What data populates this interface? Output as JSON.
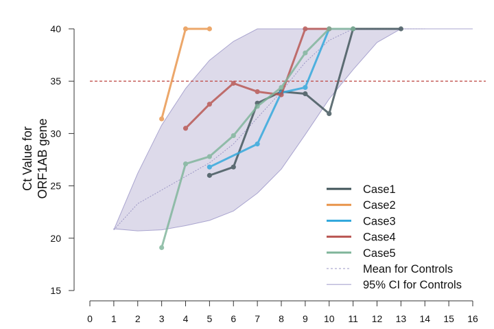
{
  "chart_data": {
    "type": "line",
    "title": "",
    "xlabel": "",
    "ylabel_lines": [
      "Ct Value for",
      "ORF1AB gene"
    ],
    "xlim": [
      0,
      16
    ],
    "ylim": [
      15,
      40
    ],
    "x_ticks": [
      "0",
      "1",
      "2",
      "3",
      "4",
      "5",
      "6",
      "7",
      "8",
      "9",
      "10",
      "11",
      "12",
      "13",
      "14",
      "15",
      "16"
    ],
    "y_ticks": [
      "15",
      "20",
      "25",
      "30",
      "35",
      "40"
    ],
    "grid": false,
    "threshold_line": {
      "y": 35,
      "color": "#c0504d",
      "style": "dashed"
    },
    "controls": {
      "mean": {
        "name": "Mean for Controls",
        "color": "#9a95c4",
        "x": [
          1,
          2,
          3,
          4,
          5,
          6,
          7,
          8,
          9,
          10,
          11,
          14
        ],
        "y": [
          20.8,
          23.3,
          24.6,
          25.9,
          27.2,
          29.0,
          31.5,
          34.0,
          36.8,
          38.9,
          40,
          40
        ]
      },
      "ci95": {
        "name": "95% CI for Controls",
        "fill": "#dddaea",
        "stroke": "#a9a4cf",
        "upper_x": [
          1,
          2,
          3,
          4,
          5,
          6,
          7,
          14,
          16
        ],
        "upper_y": [
          20.8,
          26.2,
          30.8,
          34.3,
          37.0,
          38.8,
          40,
          40,
          40
        ],
        "lower_x": [
          1,
          2,
          3,
          4,
          5,
          6,
          7,
          8,
          9,
          10,
          11,
          12,
          13,
          14
        ],
        "lower_y": [
          20.9,
          20.7,
          20.8,
          21.2,
          21.7,
          22.6,
          24.3,
          26.6,
          29.9,
          33.3,
          36.1,
          38.7,
          40,
          40
        ]
      }
    },
    "series": [
      {
        "name": "Case1",
        "color": "#3f5358",
        "x": [
          5,
          6,
          7,
          8,
          9,
          10,
          11,
          13
        ],
        "y": [
          26.0,
          26.8,
          32.9,
          34.0,
          33.8,
          31.9,
          40,
          40
        ]
      },
      {
        "name": "Case2",
        "color": "#e8944a",
        "x": [
          3,
          4,
          5
        ],
        "y": [
          31.4,
          40,
          40
        ]
      },
      {
        "name": "Case3",
        "color": "#2fa7dc",
        "x": [
          5,
          7,
          8,
          9,
          10
        ],
        "y": [
          26.8,
          29.0,
          33.9,
          34.4,
          40
        ]
      },
      {
        "name": "Case4",
        "color": "#b85450",
        "x": [
          4,
          5,
          6,
          7,
          8,
          9,
          10
        ],
        "y": [
          30.5,
          32.8,
          34.8,
          34.0,
          33.7,
          40,
          40
        ]
      },
      {
        "name": "Case5",
        "color": "#7fb59a",
        "x": [
          3,
          4,
          5,
          6,
          7,
          8,
          9,
          10,
          11
        ],
        "y": [
          19.1,
          27.1,
          27.8,
          29.8,
          32.6,
          34.4,
          37.7,
          40,
          40
        ]
      }
    ],
    "legend": {
      "placement": "bottom-right",
      "entries": [
        "Case1",
        "Case2",
        "Case3",
        "Case4",
        "Case5",
        "Mean for Controls",
        "95% CI for Controls"
      ]
    }
  }
}
